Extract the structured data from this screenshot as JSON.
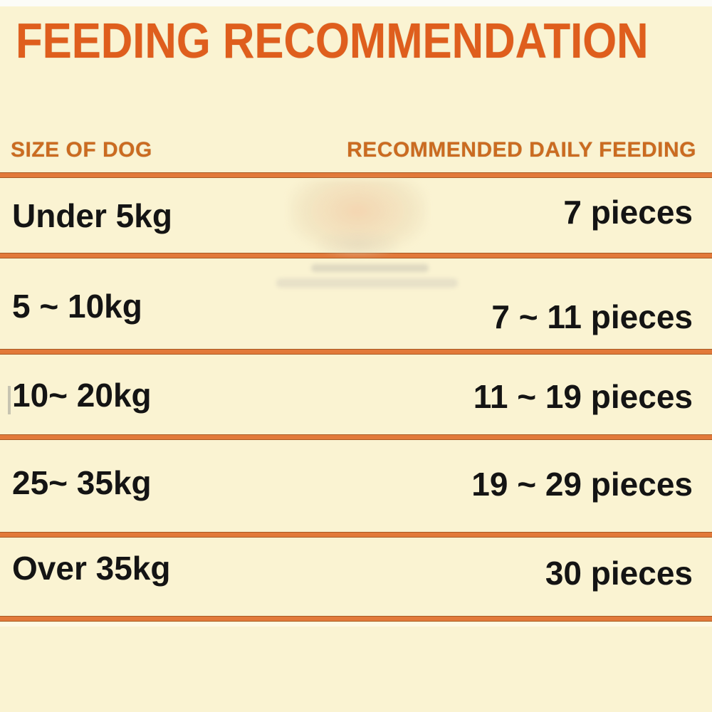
{
  "title": "FEEDING RECOMMENDATION",
  "table": {
    "headers": {
      "size": "SIZE OF DOG",
      "feeding": "RECOMMENDED DAILY FEEDING"
    },
    "rows": [
      {
        "size": "Under 5kg",
        "feeding": "7 pieces"
      },
      {
        "size": "5 ~ 10kg",
        "feeding": "7 ~ 11 pieces"
      },
      {
        "size": "10~ 20kg",
        "feeding": "11 ~ 19 pieces"
      },
      {
        "size": "25~ 35kg",
        "feeding": "19 ~ 29 pieces"
      },
      {
        "size": "Over 35kg",
        "feeding": "30 pieces"
      }
    ]
  },
  "chart_data": {
    "type": "table",
    "title": "FEEDING RECOMMENDATION",
    "columns": [
      "SIZE OF DOG",
      "RECOMMENDED DAILY FEEDING"
    ],
    "rows": [
      [
        "Under 5kg",
        "7 pieces"
      ],
      [
        "5 ~ 10kg",
        "7 ~ 11 pieces"
      ],
      [
        "10~ 20kg",
        "11 ~ 19 pieces"
      ],
      [
        "25~ 35kg",
        "19 ~ 29 pieces"
      ],
      [
        "Over 35kg",
        "30 pieces"
      ]
    ],
    "feeding_pieces_min": [
      7,
      7,
      11,
      19,
      30
    ],
    "feeding_pieces_max": [
      7,
      11,
      19,
      29,
      30
    ]
  },
  "colors": {
    "background": "#FAF3D2",
    "title_text": "#DF5E1D",
    "header_text": "#CB6B20",
    "divider": "#E2793A",
    "row_text": "#141414"
  }
}
